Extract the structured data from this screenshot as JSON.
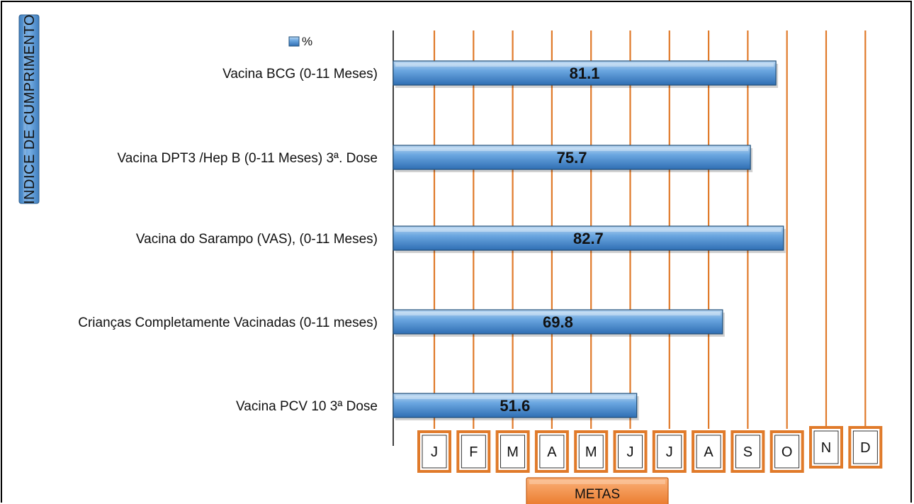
{
  "chart_data": {
    "type": "bar",
    "orientation": "horizontal",
    "categories": [
      "Vacina BCG (0-11 Meses)",
      "Vacina DPT3 /Hep B (0-11 Meses) 3ª. Dose",
      "Vacina do Sarampo (VAS), (0-11 Meses)",
      "Crianças Completamente Vacinadas (0-11 meses)",
      "Vacina PCV 10 3ª Dose"
    ],
    "series": [
      {
        "name": "%",
        "values": [
          81.1,
          75.7,
          82.7,
          69.8,
          51.6
        ]
      }
    ],
    "value_labels": [
      "81.1",
      "75.7",
      "82.7",
      "69.8",
      "51.6"
    ],
    "xlim": [
      0,
      100
    ],
    "ylabel": "INDICE DE CUMPRIMENTO",
    "xlabel": "METAS",
    "month_ticks": [
      "J",
      "F",
      "M",
      "A",
      "M",
      "J",
      "J",
      "A",
      "S",
      "O",
      "N",
      "D"
    ],
    "legend": {
      "placement": "top-left",
      "entries": [
        "%"
      ]
    },
    "grid": true,
    "colors": {
      "bar": "#4f8fd0",
      "bar_edge": "#1f4e79",
      "grid": "#e07a2a",
      "box_edge": "#e07a2a",
      "metas_fill": "#f08a3c",
      "ytitle_fill": "#5b9bd5"
    }
  }
}
